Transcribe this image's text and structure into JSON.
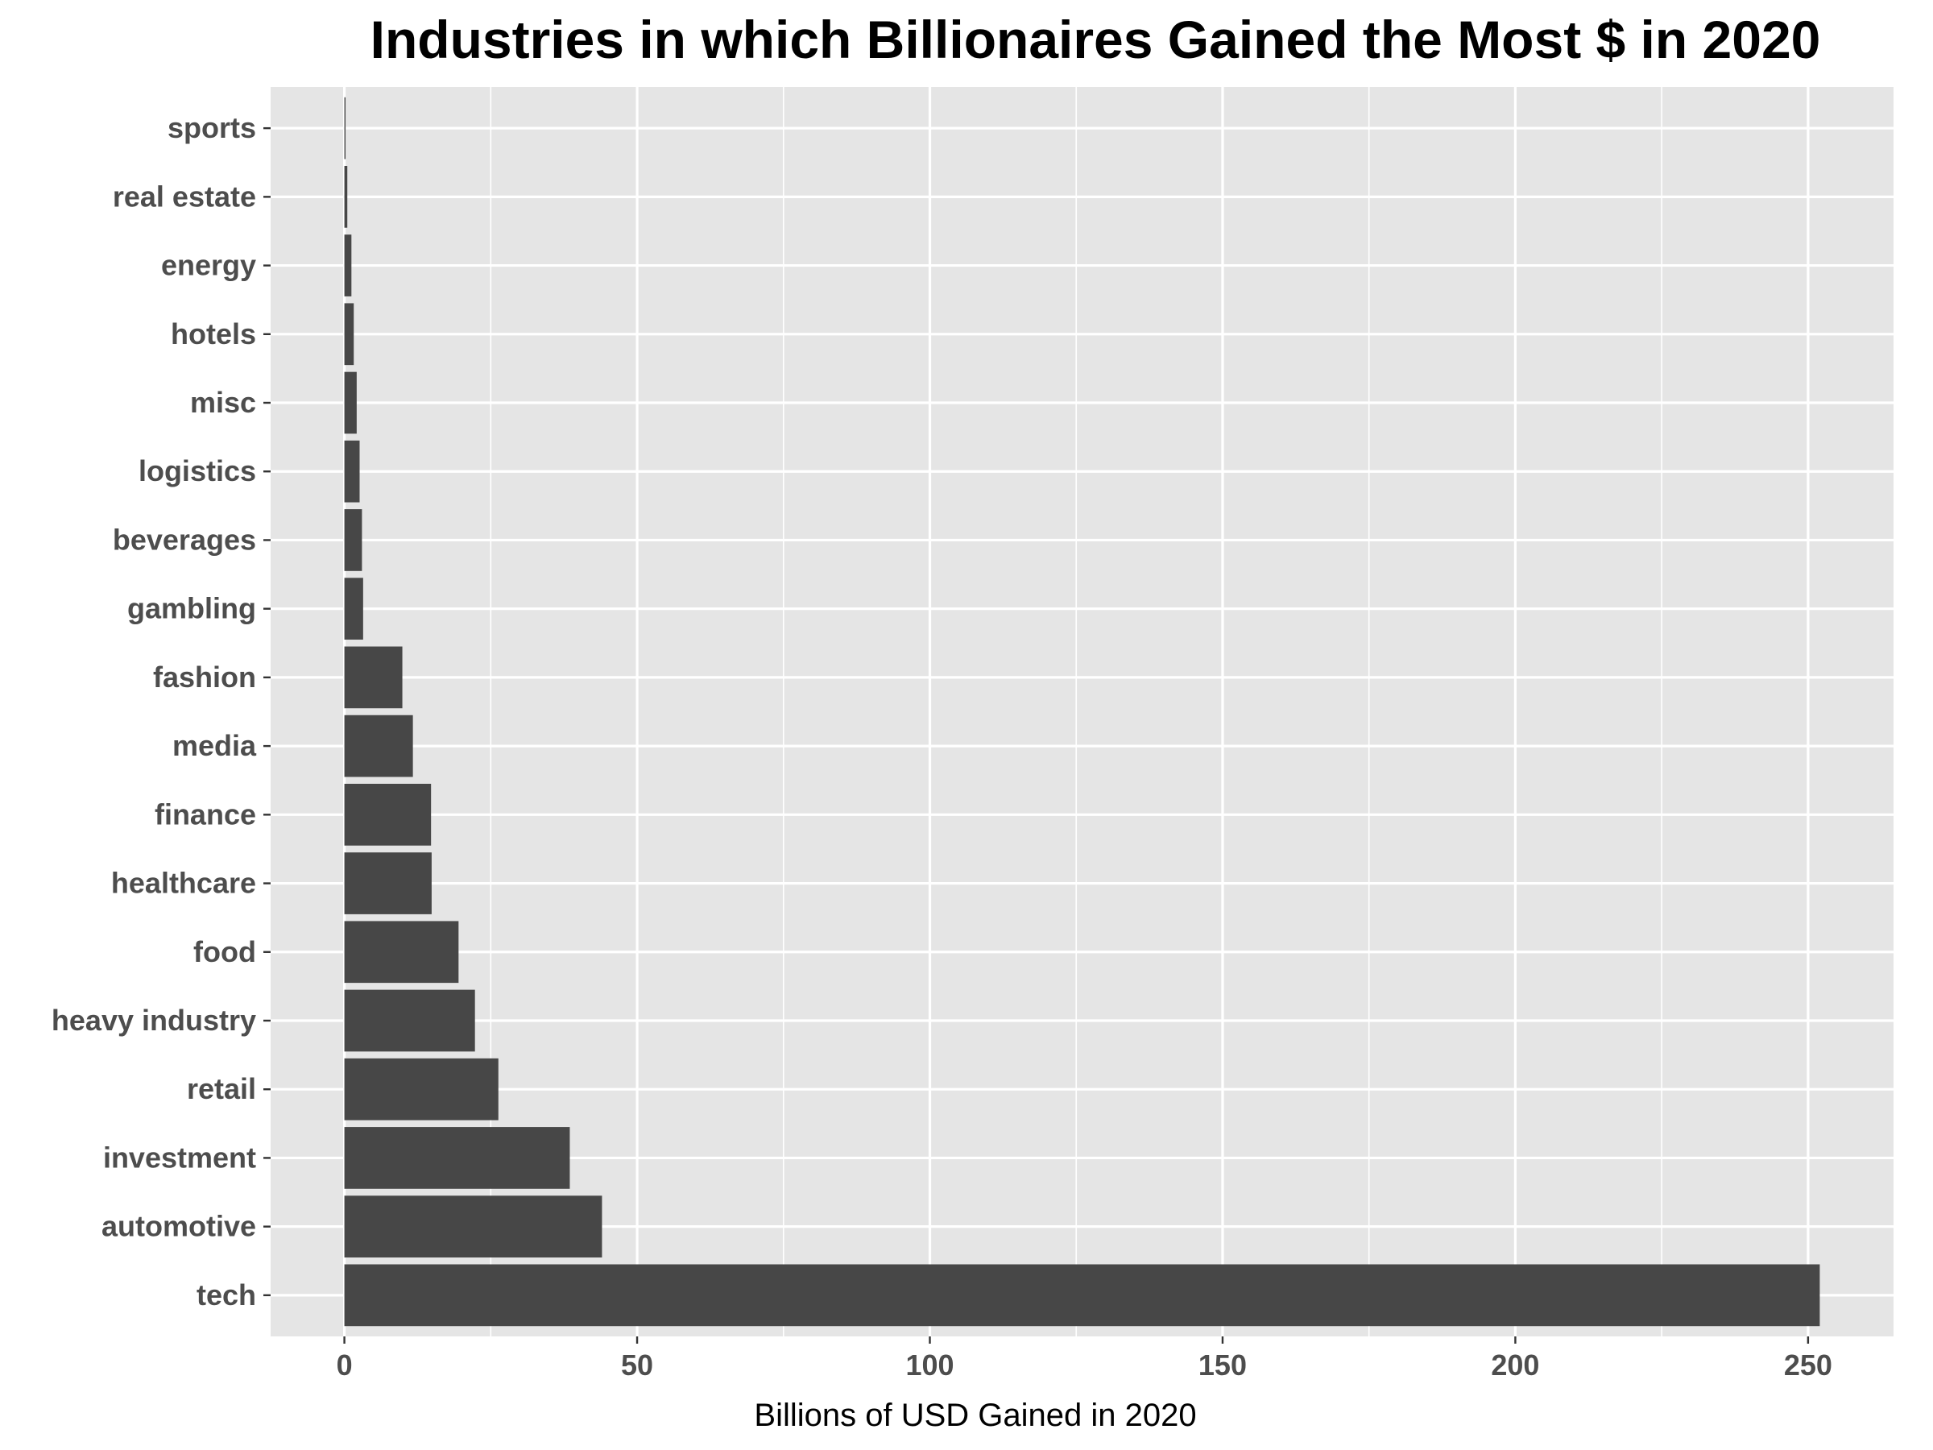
{
  "chart_data": {
    "type": "bar",
    "orientation": "horizontal",
    "title": "Industries in which Billionaires Gained the Most $ in 2020",
    "xlabel": "Billions of USD Gained in 2020",
    "ylabel": "",
    "xlim": [
      -12.6,
      264.6
    ],
    "xticks": [
      0,
      50,
      100,
      150,
      200,
      250
    ],
    "grid": true,
    "legend": "none",
    "colors": {
      "bar": "#474747",
      "panel": "#e5e5e5",
      "grid": "#ffffff",
      "tick_text": "#4d4d4d"
    },
    "categories": [
      "tech",
      "automotive",
      "investment",
      "retail",
      "heavy industry",
      "food",
      "healthcare",
      "finance",
      "media",
      "fashion",
      "gambling",
      "beverages",
      "logistics",
      "misc",
      "hotels",
      "energy",
      "real estate",
      "sports"
    ],
    "values": [
      252,
      44,
      38.5,
      26.3,
      22.3,
      19.5,
      14.9,
      14.8,
      11.7,
      9.9,
      3.2,
      3.0,
      2.6,
      2.1,
      1.6,
      1.2,
      0.5,
      0.2
    ]
  }
}
